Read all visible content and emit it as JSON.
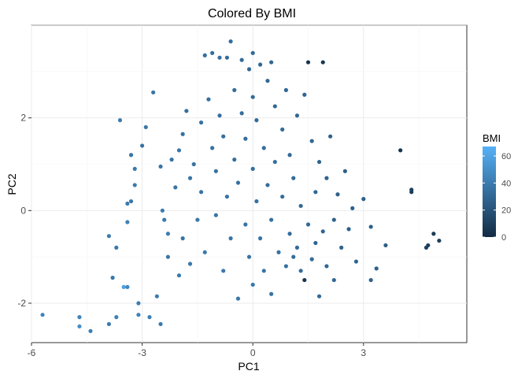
{
  "chart_data": {
    "type": "scatter",
    "title": "Colored By BMI",
    "xlabel": "PC1",
    "ylabel": "PC2",
    "xlim": [
      -6.0,
      5.8
    ],
    "ylim": [
      -2.85,
      4.0
    ],
    "x_ticks": [
      -6,
      -3,
      0,
      3
    ],
    "x_tick_labels": [
      "-6",
      "-3",
      "0",
      "3"
    ],
    "y_ticks": [
      -2,
      0,
      2
    ],
    "y_tick_labels": [
      "-2",
      "0",
      "2"
    ],
    "grid": true,
    "legend": {
      "title": "BMI",
      "placement": "right",
      "type": "colorbar",
      "min": 0,
      "max": 67,
      "ticks": [
        0,
        20,
        40,
        60
      ],
      "tick_labels": [
        "0",
        "20",
        "40",
        "60"
      ],
      "color_low": "#132b43",
      "color_high": "#56b1f7"
    },
    "points": [
      {
        "x": -5.7,
        "y": -2.25,
        "bmi": 45
      },
      {
        "x": -4.7,
        "y": -2.3,
        "bmi": 44
      },
      {
        "x": -4.7,
        "y": -2.5,
        "bmi": 50
      },
      {
        "x": -4.4,
        "y": -2.6,
        "bmi": 42
      },
      {
        "x": -3.9,
        "y": -2.45,
        "bmi": 40
      },
      {
        "x": -3.8,
        "y": -1.45,
        "bmi": 38
      },
      {
        "x": -3.7,
        "y": -2.3,
        "bmi": 43
      },
      {
        "x": -3.5,
        "y": -1.65,
        "bmi": 58
      },
      {
        "x": -3.4,
        "y": -1.65,
        "bmi": 46
      },
      {
        "x": -3.1,
        "y": -2.0,
        "bmi": 41
      },
      {
        "x": -3.1,
        "y": -2.25,
        "bmi": 44
      },
      {
        "x": -2.8,
        "y": -2.3,
        "bmi": 42
      },
      {
        "x": -2.6,
        "y": -1.85,
        "bmi": 40
      },
      {
        "x": -2.5,
        "y": -2.45,
        "bmi": 39
      },
      {
        "x": -3.9,
        "y": -0.55,
        "bmi": 40
      },
      {
        "x": -3.7,
        "y": -0.8,
        "bmi": 39
      },
      {
        "x": -3.6,
        "y": 1.95,
        "bmi": 41
      },
      {
        "x": -3.4,
        "y": 0.15,
        "bmi": 40
      },
      {
        "x": -3.4,
        "y": -0.25,
        "bmi": 43
      },
      {
        "x": -3.3,
        "y": 0.2,
        "bmi": 38
      },
      {
        "x": -3.3,
        "y": 1.2,
        "bmi": 37
      },
      {
        "x": -3.2,
        "y": 0.9,
        "bmi": 39
      },
      {
        "x": -3.2,
        "y": 0.55,
        "bmi": 40
      },
      {
        "x": -3.0,
        "y": 1.4,
        "bmi": 36
      },
      {
        "x": -2.9,
        "y": 1.8,
        "bmi": 38
      },
      {
        "x": -2.7,
        "y": 2.55,
        "bmi": 37
      },
      {
        "x": -2.5,
        "y": 0.95,
        "bmi": 36
      },
      {
        "x": -2.45,
        "y": 0.0,
        "bmi": 40
      },
      {
        "x": -2.4,
        "y": -0.2,
        "bmi": 39
      },
      {
        "x": -2.3,
        "y": -0.5,
        "bmi": 41
      },
      {
        "x": -2.3,
        "y": -1.0,
        "bmi": 38
      },
      {
        "x": -2.2,
        "y": 1.1,
        "bmi": 36
      },
      {
        "x": -2.1,
        "y": 0.5,
        "bmi": 37
      },
      {
        "x": -2.0,
        "y": 1.3,
        "bmi": 38
      },
      {
        "x": -2.0,
        "y": -1.4,
        "bmi": 40
      },
      {
        "x": -1.9,
        "y": 1.65,
        "bmi": 35
      },
      {
        "x": -1.9,
        "y": -0.6,
        "bmi": 36
      },
      {
        "x": -1.8,
        "y": 2.15,
        "bmi": 34
      },
      {
        "x": -1.7,
        "y": 0.7,
        "bmi": 37
      },
      {
        "x": -1.7,
        "y": -1.15,
        "bmi": 39
      },
      {
        "x": -1.6,
        "y": 1.0,
        "bmi": 36
      },
      {
        "x": -1.5,
        "y": -0.2,
        "bmi": 38
      },
      {
        "x": -1.4,
        "y": 1.9,
        "bmi": 35
      },
      {
        "x": -1.4,
        "y": 0.4,
        "bmi": 36
      },
      {
        "x": -1.3,
        "y": -0.9,
        "bmi": 39
      },
      {
        "x": -1.3,
        "y": 3.35,
        "bmi": 34
      },
      {
        "x": -1.2,
        "y": 2.4,
        "bmi": 35
      },
      {
        "x": -1.1,
        "y": 3.4,
        "bmi": 33
      },
      {
        "x": -1.1,
        "y": 1.35,
        "bmi": 35
      },
      {
        "x": -1.0,
        "y": -0.1,
        "bmi": 37
      },
      {
        "x": -1.0,
        "y": 0.85,
        "bmi": 35
      },
      {
        "x": -0.9,
        "y": 3.3,
        "bmi": 34
      },
      {
        "x": -0.9,
        "y": 2.05,
        "bmi": 33
      },
      {
        "x": -0.8,
        "y": -1.3,
        "bmi": 39
      },
      {
        "x": -0.8,
        "y": 1.6,
        "bmi": 34
      },
      {
        "x": -0.7,
        "y": 0.3,
        "bmi": 36
      },
      {
        "x": -0.7,
        "y": 3.3,
        "bmi": 32
      },
      {
        "x": -0.6,
        "y": 3.65,
        "bmi": 33
      },
      {
        "x": -0.6,
        "y": -0.6,
        "bmi": 37
      },
      {
        "x": -0.5,
        "y": 2.6,
        "bmi": 33
      },
      {
        "x": -0.5,
        "y": 1.1,
        "bmi": 34
      },
      {
        "x": -0.4,
        "y": -1.9,
        "bmi": 38
      },
      {
        "x": -0.4,
        "y": 0.6,
        "bmi": 35
      },
      {
        "x": -0.3,
        "y": 3.25,
        "bmi": 32
      },
      {
        "x": -0.3,
        "y": 2.1,
        "bmi": 33
      },
      {
        "x": -0.2,
        "y": -0.3,
        "bmi": 36
      },
      {
        "x": -0.2,
        "y": 1.55,
        "bmi": 33
      },
      {
        "x": -0.1,
        "y": 3.05,
        "bmi": 31
      },
      {
        "x": -0.1,
        "y": -1.0,
        "bmi": 37
      },
      {
        "x": 0.0,
        "y": 3.4,
        "bmi": 31
      },
      {
        "x": 0.0,
        "y": 2.45,
        "bmi": 32
      },
      {
        "x": 0.0,
        "y": 0.9,
        "bmi": 34
      },
      {
        "x": 0.0,
        "y": -1.6,
        "bmi": 38
      },
      {
        "x": 0.1,
        "y": 0.2,
        "bmi": 35
      },
      {
        "x": 0.1,
        "y": 1.95,
        "bmi": 32
      },
      {
        "x": 0.2,
        "y": 3.15,
        "bmi": 30
      },
      {
        "x": 0.2,
        "y": -0.6,
        "bmi": 36
      },
      {
        "x": 0.3,
        "y": 1.35,
        "bmi": 33
      },
      {
        "x": 0.3,
        "y": -1.3,
        "bmi": 37
      },
      {
        "x": 0.4,
        "y": 2.8,
        "bmi": 31
      },
      {
        "x": 0.4,
        "y": 0.55,
        "bmi": 34
      },
      {
        "x": 0.5,
        "y": 3.2,
        "bmi": 30
      },
      {
        "x": 0.5,
        "y": -0.2,
        "bmi": 35
      },
      {
        "x": 0.5,
        "y": -1.8,
        "bmi": 37
      },
      {
        "x": 0.6,
        "y": 2.25,
        "bmi": 31
      },
      {
        "x": 0.6,
        "y": 1.05,
        "bmi": 33
      },
      {
        "x": 0.7,
        "y": -0.9,
        "bmi": 35
      },
      {
        "x": 0.8,
        "y": 1.75,
        "bmi": 32
      },
      {
        "x": 0.8,
        "y": 0.3,
        "bmi": 33
      },
      {
        "x": 0.9,
        "y": -1.2,
        "bmi": 35
      },
      {
        "x": 0.9,
        "y": 2.6,
        "bmi": 30
      },
      {
        "x": 1.0,
        "y": -0.5,
        "bmi": 33
      },
      {
        "x": 1.0,
        "y": 1.2,
        "bmi": 31
      },
      {
        "x": 1.1,
        "y": -1.0,
        "bmi": 33
      },
      {
        "x": 1.1,
        "y": 0.7,
        "bmi": 32
      },
      {
        "x": 1.2,
        "y": 2.05,
        "bmi": 30
      },
      {
        "x": 1.2,
        "y": -0.8,
        "bmi": 32
      },
      {
        "x": 1.3,
        "y": -1.3,
        "bmi": 33
      },
      {
        "x": 1.3,
        "y": 0.1,
        "bmi": 31
      },
      {
        "x": 1.4,
        "y": 2.5,
        "bmi": 29
      },
      {
        "x": 1.4,
        "y": -1.5,
        "bmi": 5
      },
      {
        "x": 1.5,
        "y": 3.2,
        "bmi": 5
      },
      {
        "x": 1.5,
        "y": -0.3,
        "bmi": 31
      },
      {
        "x": 1.6,
        "y": 1.5,
        "bmi": 29
      },
      {
        "x": 1.6,
        "y": -1.05,
        "bmi": 32
      },
      {
        "x": 1.7,
        "y": 0.4,
        "bmi": 30
      },
      {
        "x": 1.7,
        "y": -0.7,
        "bmi": 30
      },
      {
        "x": 1.8,
        "y": 1.05,
        "bmi": 28
      },
      {
        "x": 1.8,
        "y": -1.85,
        "bmi": 31
      },
      {
        "x": 1.9,
        "y": 3.2,
        "bmi": 5
      },
      {
        "x": 1.9,
        "y": -0.45,
        "bmi": 29
      },
      {
        "x": 2.0,
        "y": 0.7,
        "bmi": 28
      },
      {
        "x": 2.0,
        "y": -1.2,
        "bmi": 30
      },
      {
        "x": 2.1,
        "y": 1.6,
        "bmi": 27
      },
      {
        "x": 2.2,
        "y": -0.2,
        "bmi": 28
      },
      {
        "x": 2.2,
        "y": -1.5,
        "bmi": 30
      },
      {
        "x": 2.3,
        "y": 0.35,
        "bmi": 27
      },
      {
        "x": 2.4,
        "y": -0.8,
        "bmi": 28
      },
      {
        "x": 2.5,
        "y": 0.85,
        "bmi": 26
      },
      {
        "x": 2.6,
        "y": -0.4,
        "bmi": 27
      },
      {
        "x": 2.7,
        "y": 0.05,
        "bmi": 27
      },
      {
        "x": 2.8,
        "y": -1.1,
        "bmi": 28
      },
      {
        "x": 3.0,
        "y": 0.25,
        "bmi": 26
      },
      {
        "x": 3.2,
        "y": -0.35,
        "bmi": 26
      },
      {
        "x": 3.2,
        "y": -1.5,
        "bmi": 28
      },
      {
        "x": 3.35,
        "y": -1.25,
        "bmi": 27
      },
      {
        "x": 3.6,
        "y": -0.75,
        "bmi": 25
      },
      {
        "x": 4.0,
        "y": 1.3,
        "bmi": 5
      },
      {
        "x": 4.3,
        "y": 0.4,
        "bmi": 8
      },
      {
        "x": 4.3,
        "y": 0.45,
        "bmi": 10
      },
      {
        "x": 4.7,
        "y": -0.8,
        "bmi": 12
      },
      {
        "x": 4.75,
        "y": -0.75,
        "bmi": 10
      },
      {
        "x": 4.9,
        "y": -0.5,
        "bmi": 8
      },
      {
        "x": 5.05,
        "y": -0.65,
        "bmi": 10
      }
    ]
  }
}
